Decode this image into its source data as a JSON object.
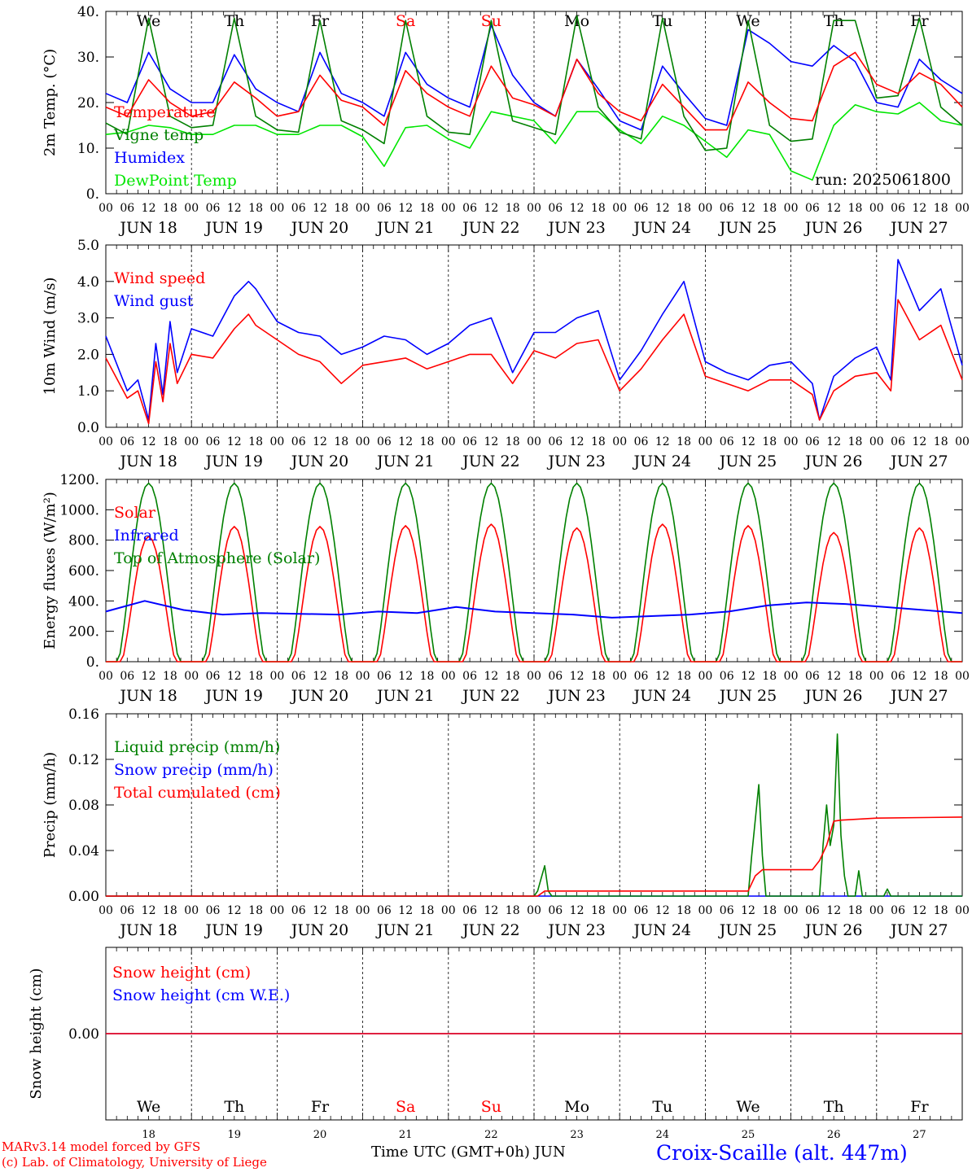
{
  "footer": {
    "credit_line1": "MARv3.14 model forced by GFS",
    "credit_line2": "(c) Lab. of Climatology, University of Liege",
    "xaxis_title": "Time UTC (GMT+0h) JUN",
    "station": "Croix-Scaille (alt. 447m)"
  },
  "days": [
    "18",
    "19",
    "20",
    "21",
    "22",
    "23",
    "24",
    "25",
    "26",
    "27"
  ],
  "day_labels": [
    "JUN 18",
    "JUN 19",
    "JUN 20",
    "JUN 21",
    "JUN 22",
    "JUN 23",
    "JUN 24",
    "JUN 25",
    "JUN 26",
    "JUN 27"
  ],
  "weekdays": [
    "We",
    "Th",
    "Fr",
    "Sa",
    "Su",
    "Mo",
    "Tu",
    "We",
    "Th",
    "Fr"
  ],
  "weekday_colors": [
    "#000000",
    "#000000",
    "#000000",
    "#ff0000",
    "#ff0000",
    "#000000",
    "#000000",
    "#000000",
    "#000000",
    "#000000"
  ],
  "hour_ticks": [
    "00",
    "06",
    "12",
    "18"
  ],
  "hour_end": "00",
  "colors": {
    "red": "#ff0000",
    "green": "#008000",
    "blue": "#0000ff",
    "lightgreen": "#00e600"
  },
  "chart_data": [
    {
      "type": "line",
      "ylabel": "2m Temp. (°C)",
      "ylim": [
        0,
        40
      ],
      "yticks": [
        "0.",
        "10.",
        "20.",
        "30.",
        "40."
      ],
      "annotation": "run: 2025061800",
      "x_hours": [
        0,
        6,
        12,
        18,
        24,
        30,
        36,
        42,
        48,
        54,
        60,
        66,
        72,
        78,
        84,
        90,
        96,
        102,
        108,
        114,
        120,
        126,
        132,
        138,
        144,
        150,
        156,
        162,
        168,
        174,
        180,
        186,
        192,
        198,
        204,
        210,
        216,
        222,
        228,
        234,
        240
      ],
      "series": [
        {
          "name": "Temperature",
          "color": "#ff0000",
          "values": [
            19,
            17,
            25,
            20,
            17,
            18,
            24.5,
            21,
            17,
            18,
            26,
            20.5,
            19,
            15,
            27,
            22,
            19,
            17,
            28,
            21,
            19.5,
            17,
            29.5,
            22,
            18,
            16,
            24,
            19,
            14,
            14,
            24.5,
            20,
            16.5,
            16,
            28,
            31,
            24,
            22,
            26.5,
            24,
            19
          ]
        },
        {
          "name": "Vigne temp",
          "color": "#008000",
          "values": [
            15.5,
            13,
            38.5,
            17,
            14.5,
            15,
            38.5,
            17,
            14,
            13.5,
            38,
            16,
            14,
            11,
            38,
            17,
            13.5,
            13,
            38,
            16,
            14.5,
            13,
            39,
            19,
            13.5,
            12,
            38.5,
            17,
            9.5,
            10,
            38,
            15,
            11.5,
            12,
            38,
            38,
            21,
            21.5,
            38.5,
            19,
            15
          ]
        },
        {
          "name": "Humidex",
          "color": "#0000ff",
          "values": [
            22,
            20,
            31,
            23,
            20,
            20,
            30.5,
            23,
            20,
            18,
            31,
            22,
            20,
            17,
            31,
            24,
            21,
            19,
            37,
            26,
            20,
            17,
            29.5,
            23,
            16,
            14,
            28,
            22,
            16.5,
            15,
            36,
            33,
            29,
            28,
            32.5,
            29,
            20,
            19,
            29.5,
            25,
            22
          ]
        },
        {
          "name": "DewPoint Temp",
          "color": "#00e600",
          "values": [
            13,
            13.5,
            15,
            14.5,
            13,
            13,
            15,
            15,
            13,
            13,
            15,
            15,
            12.5,
            6,
            14.5,
            15,
            12,
            10,
            18,
            17,
            16,
            11,
            18,
            18,
            14,
            11,
            17,
            15,
            11.5,
            8,
            14,
            13,
            5,
            3,
            15,
            19.5,
            18,
            17.5,
            20,
            16,
            15
          ]
        }
      ]
    },
    {
      "type": "line",
      "ylabel": "10m Wind (m/s)",
      "ylim": [
        0,
        5
      ],
      "yticks": [
        "0.0",
        "1.0",
        "2.0",
        "3.0",
        "4.0",
        "5.0"
      ],
      "x_hours": [
        0,
        6,
        9,
        12,
        14,
        16,
        18,
        20,
        24,
        30,
        36,
        40,
        42,
        48,
        54,
        60,
        66,
        72,
        78,
        84,
        90,
        96,
        102,
        108,
        114,
        120,
        126,
        132,
        138,
        144,
        150,
        156,
        162,
        168,
        174,
        180,
        186,
        192,
        198,
        200,
        204,
        210,
        216,
        220,
        222,
        228,
        234,
        240
      ],
      "series": [
        {
          "name": "Wind speed",
          "color": "#ff0000",
          "values": [
            1.9,
            0.8,
            1.0,
            0.1,
            1.8,
            0.7,
            2.3,
            1.2,
            2.0,
            1.9,
            2.7,
            3.1,
            2.8,
            2.4,
            2.0,
            1.8,
            1.2,
            1.7,
            1.8,
            1.9,
            1.6,
            1.8,
            2.0,
            2.0,
            1.2,
            2.1,
            1.9,
            2.3,
            2.4,
            1.0,
            1.6,
            2.4,
            3.1,
            1.4,
            1.2,
            1.0,
            1.3,
            1.3,
            0.9,
            0.2,
            1.0,
            1.4,
            1.5,
            1.0,
            3.5,
            2.4,
            2.8,
            1.3
          ]
        },
        {
          "name": "Wind gust",
          "color": "#0000ff",
          "values": [
            2.5,
            1.0,
            1.3,
            0.2,
            2.3,
            0.9,
            2.9,
            1.5,
            2.7,
            2.5,
            3.6,
            4.0,
            3.8,
            2.9,
            2.6,
            2.5,
            2.0,
            2.2,
            2.5,
            2.4,
            2.0,
            2.3,
            2.8,
            3.0,
            1.5,
            2.6,
            2.6,
            3.0,
            3.2,
            1.3,
            2.1,
            3.1,
            4.0,
            1.8,
            1.5,
            1.3,
            1.7,
            1.8,
            1.2,
            0.2,
            1.4,
            1.9,
            2.2,
            1.3,
            4.6,
            3.2,
            3.8,
            1.7
          ]
        }
      ]
    },
    {
      "type": "line",
      "ylabel": "Energy fluxes (W/m²)",
      "ylim": [
        0,
        1200
      ],
      "yticks": [
        "0.",
        "200.",
        "400.",
        "600.",
        "800.",
        "1000.",
        "1200."
      ],
      "series": [
        {
          "name": "Solar",
          "color": "#ff0000",
          "values": [
            825,
            890,
            890,
            895,
            905,
            880,
            905,
            895,
            850,
            880
          ]
        },
        {
          "name": "Infrared",
          "color": "#0000ff",
          "values": [
            330,
            400,
            340,
            310,
            320,
            315,
            310,
            330,
            320,
            360,
            330,
            320,
            310,
            290,
            300,
            310,
            330,
            370,
            390,
            380,
            360,
            340,
            320
          ]
        },
        {
          "name": "Top of Atmosphere (Solar)",
          "color": "#008000",
          "values": [
            1175,
            1175,
            1175,
            1175,
            1175,
            1175,
            1175,
            1175,
            1175,
            1175
          ]
        }
      ]
    },
    {
      "type": "line",
      "ylabel": "Precip (mm/h)",
      "ylim": [
        0,
        0.18
      ],
      "yticks": [
        "0.00",
        "0.04",
        "0.08",
        "0.12",
        "0.16"
      ],
      "series": [
        {
          "name": "Liquid precip (mm/h)",
          "color": "#008000",
          "x_hours": [
            0,
            120,
            121,
            123,
            124,
            125,
            180,
            181,
            183,
            184,
            185,
            200,
            201,
            202,
            203,
            204,
            205,
            206,
            207,
            208,
            209,
            210,
            211,
            212,
            213,
            214,
            215,
            216,
            217,
            218,
            219,
            220,
            221,
            240
          ],
          "values": [
            0,
            0,
            0.005,
            0.03,
            0.005,
            0,
            0,
            0.04,
            0.11,
            0.04,
            0,
            0,
            0.05,
            0.09,
            0.05,
            0.07,
            0.16,
            0.06,
            0.02,
            0,
            0,
            0,
            0.025,
            0,
            0,
            0,
            0,
            0,
            0,
            0,
            0.007,
            0,
            0,
            0
          ]
        },
        {
          "name": "Snow precip (mm/h)",
          "color": "#0000ff",
          "x_hours": [
            0,
            240
          ],
          "values": [
            0,
            0
          ]
        },
        {
          "name": "Total cumulated (cm)",
          "color": "#ff0000",
          "x_hours": [
            0,
            121,
            123,
            180,
            182,
            184,
            198,
            200,
            202,
            204,
            206,
            216,
            240
          ],
          "values": [
            0,
            0,
            0.005,
            0.005,
            0.02,
            0.026,
            0.026,
            0.035,
            0.05,
            0.074,
            0.075,
            0.077,
            0.078
          ]
        }
      ]
    },
    {
      "type": "line",
      "ylabel": "Snow height (cm)",
      "yticks": [
        "0.00"
      ],
      "series": [
        {
          "name": "Snow height (cm)",
          "color": "#ff0000",
          "values": [
            0.0,
            0.0
          ]
        },
        {
          "name": "Snow height (cm W.E.)",
          "color": "#0000ff",
          "values": [
            0.0,
            0.0
          ]
        }
      ]
    }
  ]
}
